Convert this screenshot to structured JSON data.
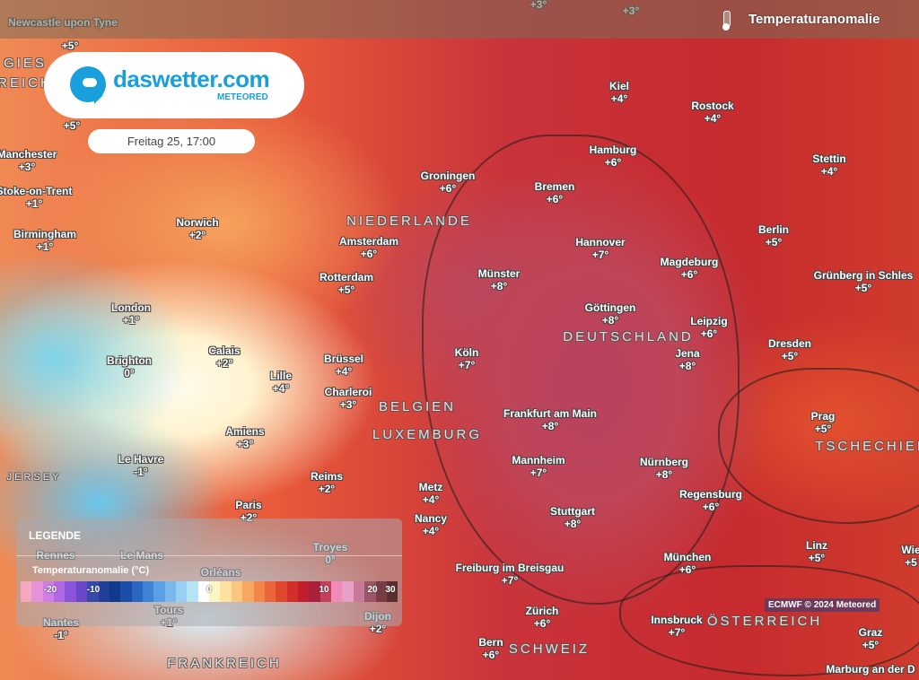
{
  "header": {
    "title": "Temperaturanomalie",
    "icon": "thermometer-icon"
  },
  "logo": {
    "name": "daswetter.com",
    "sub": "METEORED",
    "color": "#1a9fdd"
  },
  "date": "Freitag 25, 17:00",
  "credit": "ECMWF © 2024 Meteored",
  "legend": {
    "title": "LEGENDE",
    "subtitle": "Temperaturanomalie (°C)",
    "ticks": [
      "-20",
      "-10",
      "0",
      "10",
      "20",
      "30"
    ],
    "colors": [
      "#f5a8c0",
      "#e692d8",
      "#d07ee6",
      "#b267e4",
      "#8a55d8",
      "#6a48c8",
      "#3848a8",
      "#1f3f98",
      "#0f3a8c",
      "#1a4ea8",
      "#2b66c2",
      "#3f82d6",
      "#5aa0e4",
      "#7ab8ec",
      "#98d0f2",
      "#b4e4f6",
      "#ffffff",
      "#fff4c4",
      "#fde2a0",
      "#fbc67e",
      "#f9a660",
      "#f2864a",
      "#ea6638",
      "#e0482e",
      "#d22e2a",
      "#c01e2c",
      "#a8203a",
      "#c4405a",
      "#f08ab8",
      "#e8a0c8",
      "#c87a98",
      "#9c5468",
      "#7a3c44",
      "#5a2e2c"
    ]
  },
  "cities": [
    {
      "name": "Newcastle upon Tyne",
      "temp": ""
    },
    {
      "name": "",
      "temp": "+5°"
    },
    {
      "name": "",
      "temp": "+5°"
    },
    {
      "name": "Manchester",
      "temp": "+3°"
    },
    {
      "name": "Stoke-on-Trent",
      "temp": "+1°"
    },
    {
      "name": "Birmingham",
      "temp": "+1°"
    },
    {
      "name": "Norwich",
      "temp": "+2°"
    },
    {
      "name": "London",
      "temp": "+1°"
    },
    {
      "name": "Brighton",
      "temp": "0°"
    },
    {
      "name": "Calais",
      "temp": "+2°"
    },
    {
      "name": "Lille",
      "temp": "+4°"
    },
    {
      "name": "Brüssel",
      "temp": "+4°"
    },
    {
      "name": "Charleroi",
      "temp": "+3°"
    },
    {
      "name": "Amiens",
      "temp": "+3°"
    },
    {
      "name": "Le Havre",
      "temp": "-1°"
    },
    {
      "name": "Reims",
      "temp": "+2°"
    },
    {
      "name": "Paris",
      "temp": "+2°"
    },
    {
      "name": "Metz",
      "temp": "+4°"
    },
    {
      "name": "Nancy",
      "temp": "+4°"
    },
    {
      "name": "Troyes",
      "temp": "0°"
    },
    {
      "name": "Rennes",
      "temp": ""
    },
    {
      "name": "Le Mans",
      "temp": ""
    },
    {
      "name": "Orléans",
      "temp": ""
    },
    {
      "name": "Tours",
      "temp": "+1°"
    },
    {
      "name": "Nantes",
      "temp": "-1°"
    },
    {
      "name": "Dijon",
      "temp": "+2°"
    },
    {
      "name": "Amsterdam",
      "temp": "+6°"
    },
    {
      "name": "Rotterdam",
      "temp": "+5°"
    },
    {
      "name": "Groningen",
      "temp": "+6°"
    },
    {
      "name": "Bremen",
      "temp": "+6°"
    },
    {
      "name": "Hamburg",
      "temp": "+6°"
    },
    {
      "name": "Kiel",
      "temp": "+4°"
    },
    {
      "name": "Rostock",
      "temp": "+4°"
    },
    {
      "name": "Stettin",
      "temp": "+4°"
    },
    {
      "name": "Berlin",
      "temp": "+5°"
    },
    {
      "name": "Hannover",
      "temp": "+7°"
    },
    {
      "name": "Magdeburg",
      "temp": "+6°"
    },
    {
      "name": "Münster",
      "temp": "+8°"
    },
    {
      "name": "Göttingen",
      "temp": "+8°"
    },
    {
      "name": "Leipzig",
      "temp": "+6°"
    },
    {
      "name": "Köln",
      "temp": "+7°"
    },
    {
      "name": "Jena",
      "temp": "+8°"
    },
    {
      "name": "Dresden",
      "temp": "+5°"
    },
    {
      "name": "Grünberg in Schles",
      "temp": "+5°"
    },
    {
      "name": "Frankfurt am Main",
      "temp": "+8°"
    },
    {
      "name": "Mannheim",
      "temp": "+7°"
    },
    {
      "name": "Nürnberg",
      "temp": "+8°"
    },
    {
      "name": "Regensburg",
      "temp": "+6°"
    },
    {
      "name": "Stuttgart",
      "temp": "+8°"
    },
    {
      "name": "Prag",
      "temp": "+5°"
    },
    {
      "name": "Freiburg im Breisgau",
      "temp": "+7°"
    },
    {
      "name": "München",
      "temp": "+6°"
    },
    {
      "name": "Linz",
      "temp": "+5°"
    },
    {
      "name": "Wie",
      "temp": "+5"
    },
    {
      "name": "Zürich",
      "temp": "+6°"
    },
    {
      "name": "Innsbruck",
      "temp": "+7°"
    },
    {
      "name": "Bern",
      "temp": "+6°"
    },
    {
      "name": "Graz",
      "temp": "+5°"
    },
    {
      "name": "Marburg an der D",
      "temp": ""
    },
    {
      "name": "",
      "temp": "+3°"
    },
    {
      "name": "",
      "temp": "+3°"
    }
  ],
  "countries": [
    "NIEDERLANDE",
    "BELGIEN",
    "LUXEMBURG",
    "DEUTSCHLAND",
    "TSCHECHIEN",
    "ÖSTERREICH",
    "SCHWEIZ",
    "FRANKREICH",
    "JERSEY",
    "GIES",
    "REICH"
  ]
}
